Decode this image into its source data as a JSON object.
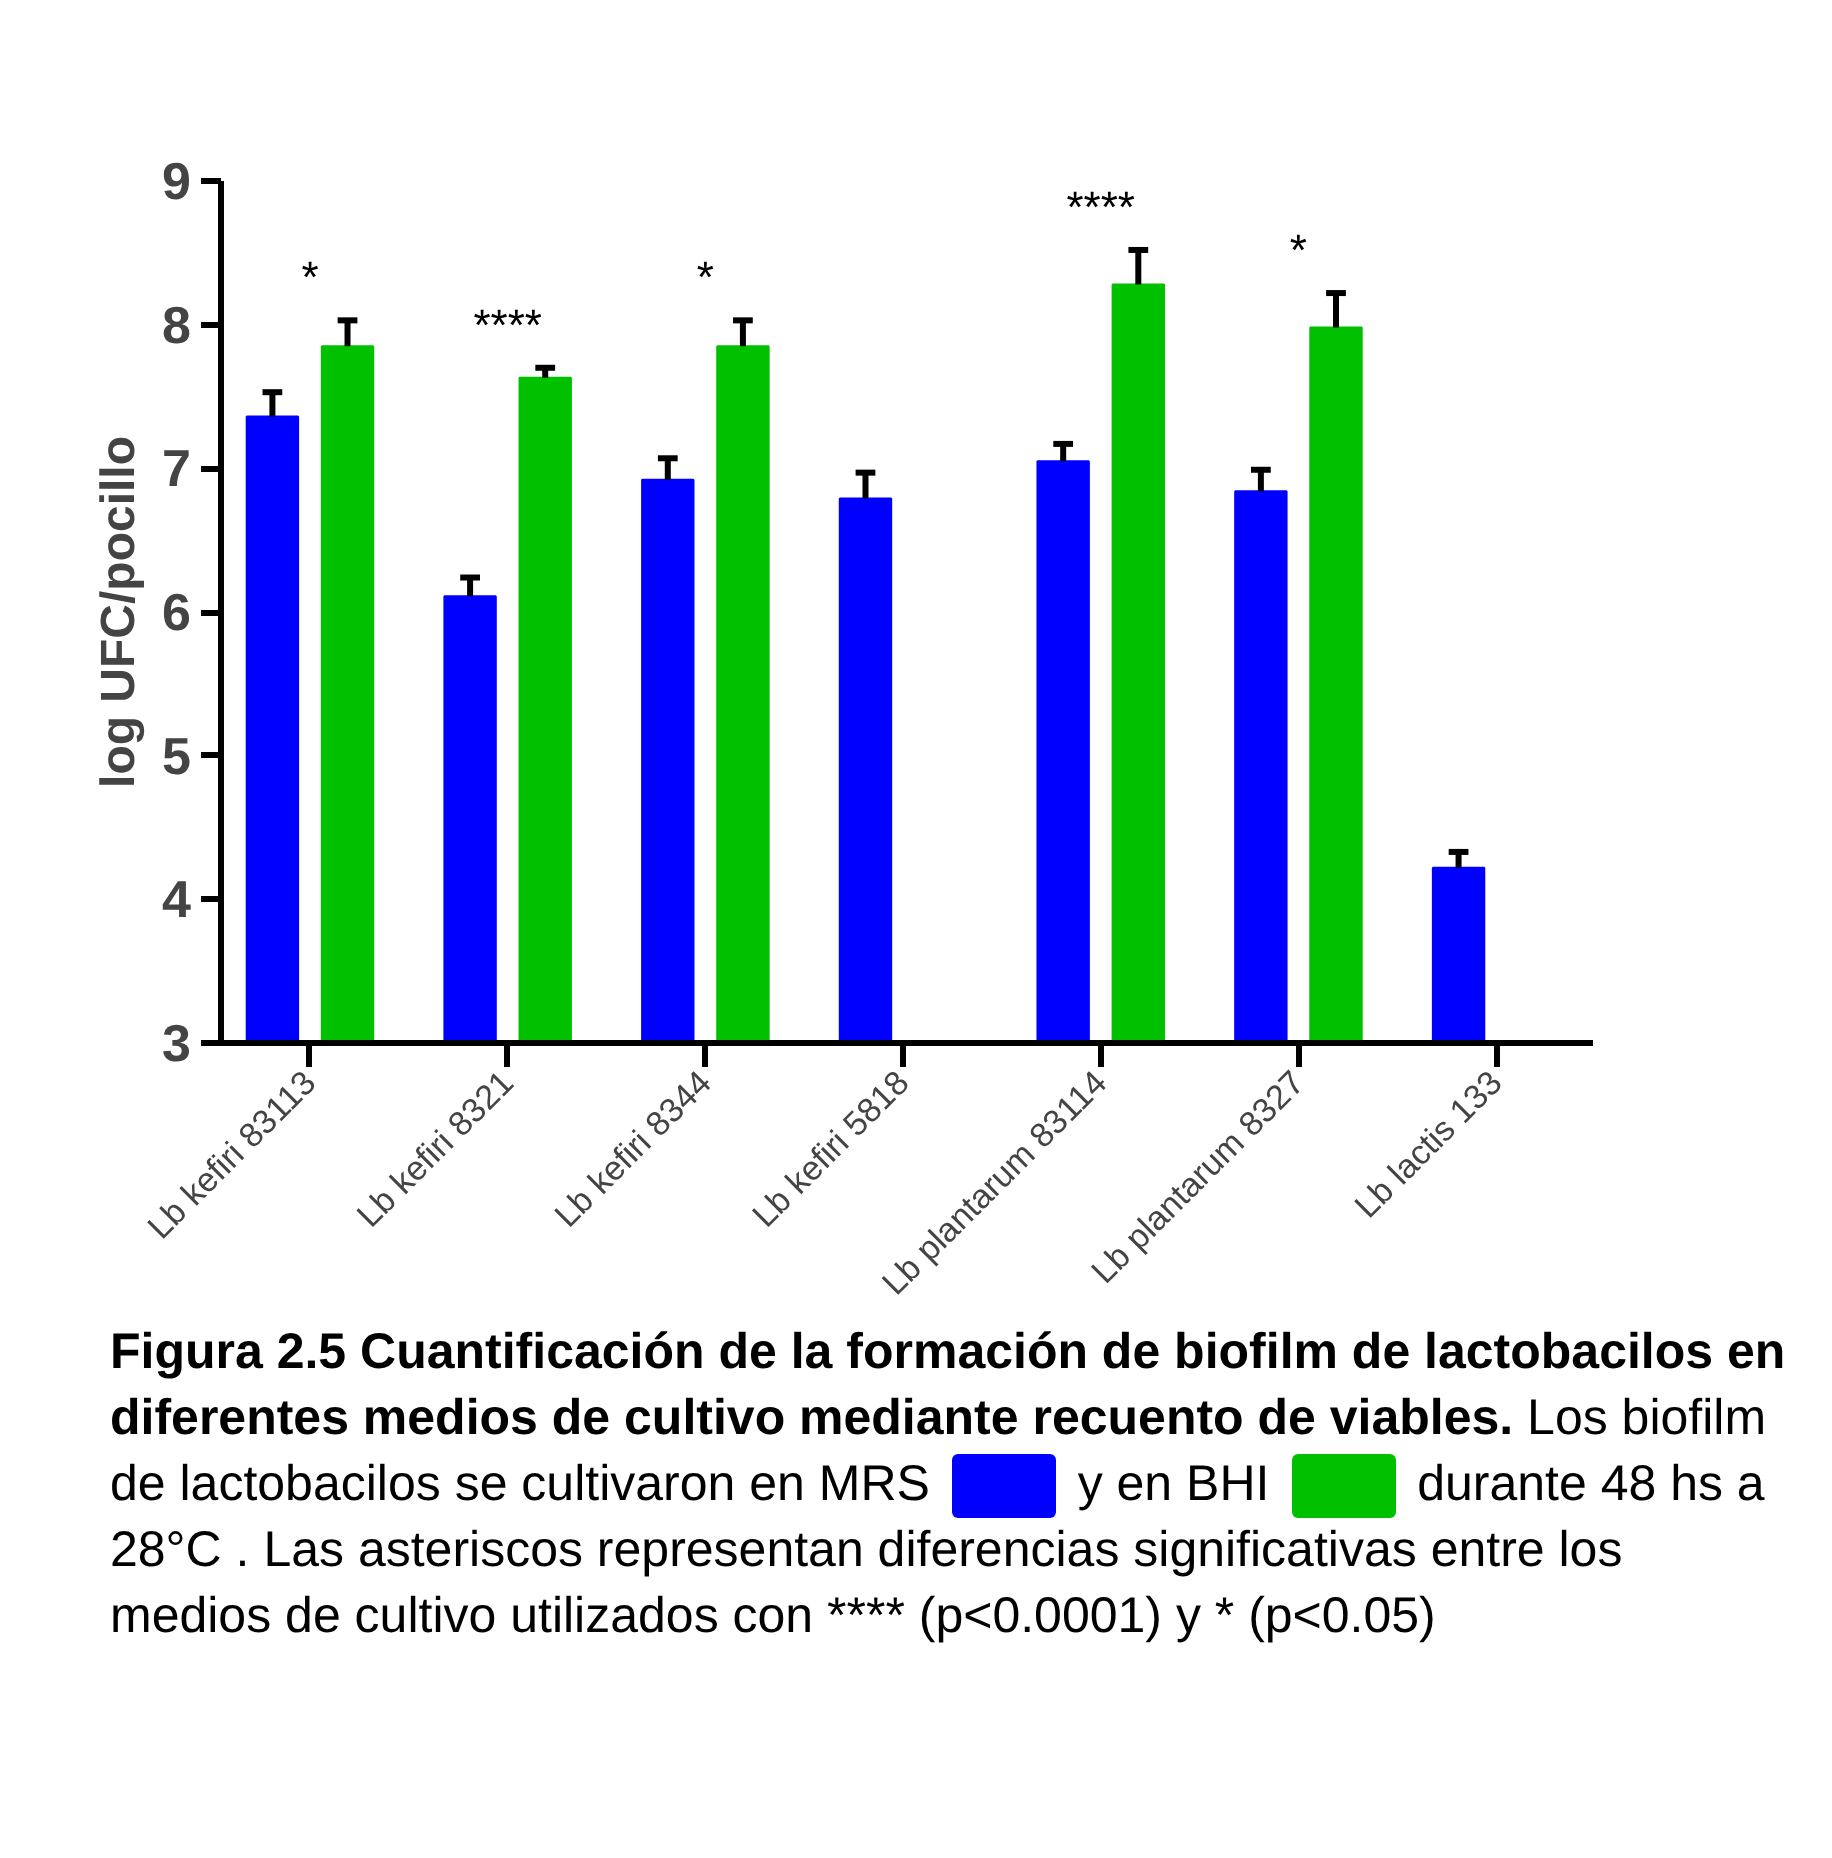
{
  "chart_data": {
    "type": "bar",
    "ylabel": "log UFC/pocillo",
    "categories": [
      "Lb kefiri 83113",
      "Lb kefiri 8321",
      "Lb kefiri 8344",
      "Lb kefiri 5818",
      "Lb plantarum 83114",
      "Lb plantarum 8327",
      "Lb lactis 133"
    ],
    "series": [
      {
        "color": "#0000ff",
        "values": [
          7.36,
          6.11,
          6.92,
          6.79,
          7.05,
          6.84,
          4.22
        ],
        "errors": [
          [
            7.36,
            7.53
          ],
          [
            6.11,
            6.24
          ],
          [
            6.92,
            7.07
          ],
          [
            6.79,
            6.97
          ],
          [
            7.05,
            7.17
          ],
          [
            6.84,
            6.99
          ],
          [
            4.22,
            4.33
          ]
        ]
      },
      {
        "color": "#00c000",
        "values": [
          7.85,
          7.63,
          7.85,
          null,
          8.28,
          7.98,
          null
        ],
        "errors": [
          [
            7.85,
            8.03
          ],
          [
            7.63,
            7.7
          ],
          [
            7.85,
            8.03
          ],
          null,
          [
            8.28,
            8.52
          ],
          [
            7.98,
            8.22
          ],
          null
        ]
      }
    ],
    "ylim": [
      3,
      9
    ],
    "yticks": [
      3,
      4,
      5,
      6,
      7,
      8,
      9
    ],
    "grid": false,
    "annotations": [
      "*",
      "****",
      "*",
      "****",
      "*",
      "Figura 2.5 Cuantificación de la formación de biofilm de lactobacilos en diferentes medios de cultivo mediante recuento de viables.",
      "Los biofilm de lactobacilos se cultivaron en MRS",
      "y en BHI",
      "durante 48 hs a 28°C . Las asteriscos representan diferencias significativas  entre los medios de cultivo utilizados con **** (p<0.0001) y * (p<0.05)"
    ]
  }
}
